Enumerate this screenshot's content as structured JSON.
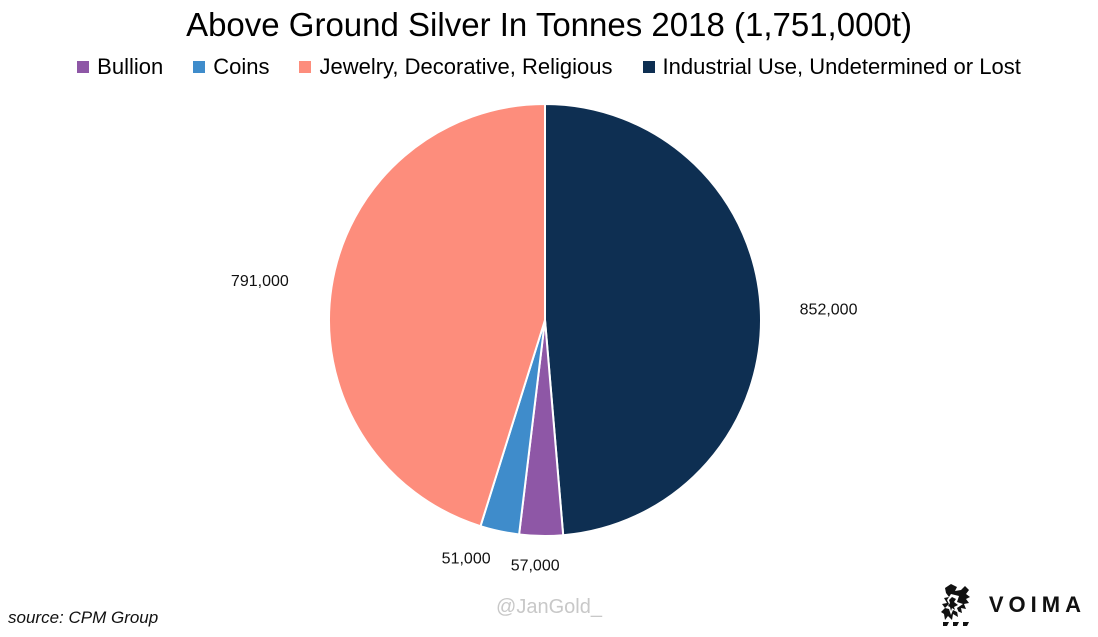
{
  "chart_data": {
    "type": "pie",
    "title": "Above Ground Silver In Tonnes 2018 (1,751,000t)",
    "categories": [
      "Bullion",
      "Coins",
      "Jewelry, Decorative, Religious",
      "Industrial Use, Undetermined or Lost"
    ],
    "values": [
      57000,
      51000,
      791000,
      852000
    ],
    "value_labels": [
      "57,000",
      "51,000",
      "791,000",
      "852,000"
    ],
    "colors": [
      "#8e57a6",
      "#3f8ccb",
      "#fd8d7c",
      "#0e2f52"
    ],
    "legend_position": "top"
  },
  "legend": [
    {
      "label": "Bullion",
      "color": "#8e57a6"
    },
    {
      "label": "Coins",
      "color": "#3f8ccb"
    },
    {
      "label": "Jewelry, Decorative, Religious",
      "color": "#fd8d7c"
    },
    {
      "label": "Industrial Use, Undetermined or Lost",
      "color": "#0e2f52"
    }
  ],
  "source": "source: CPM Group",
  "watermark": "@JanGold_",
  "logo": {
    "text": "VOIMA"
  }
}
